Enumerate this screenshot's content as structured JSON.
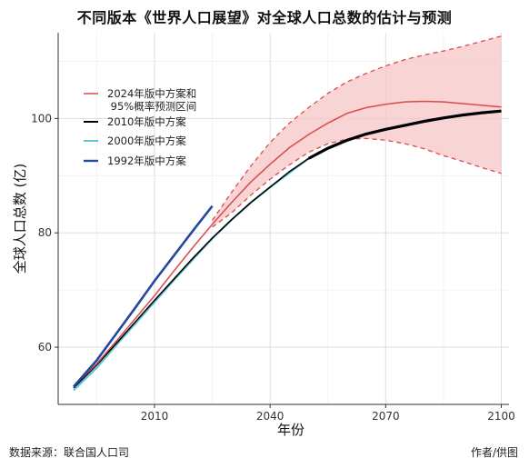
{
  "title": "不同版本《世界人口展望》对全球人口总数的估计与预测",
  "source": "数据来源：联合国人口司",
  "credit": "作者/供图",
  "chart_data": {
    "type": "line",
    "xlabel": "年份",
    "ylabel": "全球人口总数 (亿)",
    "xlim": [
      1985,
      2102
    ],
    "ylim": [
      50,
      115
    ],
    "xticks": [
      2010,
      2040,
      2070,
      2100
    ],
    "yticks": [
      60,
      80,
      100
    ],
    "grid": true,
    "legend_position": "top-left",
    "series": [
      {
        "name": "2024年版中方案和\n 95%概率预测区间",
        "color": "#d94b4b",
        "kind": "median-with-interval",
        "x": [
          1989,
          1995,
          2000,
          2005,
          2010,
          2015,
          2020,
          2025,
          2030,
          2035,
          2040,
          2045,
          2050,
          2055,
          2060,
          2065,
          2070,
          2075,
          2080,
          2085,
          2090,
          2095,
          2100
        ],
        "values": [
          53.2,
          57.1,
          61.0,
          65.0,
          69.0,
          73.3,
          77.5,
          81.5,
          85.3,
          88.9,
          92.0,
          94.9,
          97.2,
          99.2,
          100.9,
          101.9,
          102.5,
          102.9,
          103.0,
          102.9,
          102.6,
          102.3,
          102.0
        ],
        "lower": [
          null,
          null,
          null,
          null,
          null,
          null,
          null,
          81.0,
          83.5,
          86.6,
          89.4,
          91.9,
          94.1,
          95.6,
          96.4,
          96.5,
          96.2,
          95.6,
          94.7,
          93.5,
          92.5,
          91.4,
          90.4
        ],
        "upper": [
          null,
          null,
          null,
          null,
          null,
          null,
          null,
          82.2,
          87.1,
          91.7,
          95.8,
          99.2,
          101.9,
          104.4,
          106.4,
          107.9,
          109.2,
          110.3,
          111.1,
          111.8,
          112.6,
          113.5,
          114.4
        ]
      },
      {
        "name": "2010年版中方案",
        "color": "#000000",
        "kind": "line",
        "x": [
          1989,
          1995,
          2000,
          2005,
          2010,
          2015,
          2020,
          2025,
          2030,
          2035,
          2040,
          2045,
          2050,
          2055,
          2060,
          2065,
          2070,
          2075,
          2080,
          2085,
          2090,
          2095,
          2100
        ],
        "values": [
          52.9,
          56.9,
          60.6,
          64.4,
          68.2,
          71.9,
          75.6,
          79.1,
          82.3,
          85.3,
          88.0,
          90.7,
          93.0,
          94.8,
          96.2,
          97.3,
          98.1,
          98.8,
          99.5,
          100.1,
          100.6,
          101.0,
          101.3
        ]
      },
      {
        "name": "2000年版中方案",
        "color": "#5fc6d8",
        "kind": "line",
        "x": [
          1989,
          1995,
          2000,
          2005,
          2010,
          2015,
          2020,
          2025,
          2030,
          2035,
          2040,
          2045,
          2050
        ],
        "values": [
          52.5,
          56.4,
          60.3,
          64.1,
          67.9,
          71.7,
          75.4,
          79.0,
          82.3,
          85.3,
          88.0,
          90.5,
          93.0
        ]
      },
      {
        "name": "1992年版中方案",
        "color": "#2448a0",
        "kind": "line",
        "x": [
          1989,
          1995,
          2000,
          2005,
          2010,
          2015,
          2020,
          2025
        ],
        "values": [
          53.1,
          57.7,
          62.3,
          66.9,
          71.6,
          76.0,
          80.4,
          84.7
        ]
      }
    ]
  }
}
